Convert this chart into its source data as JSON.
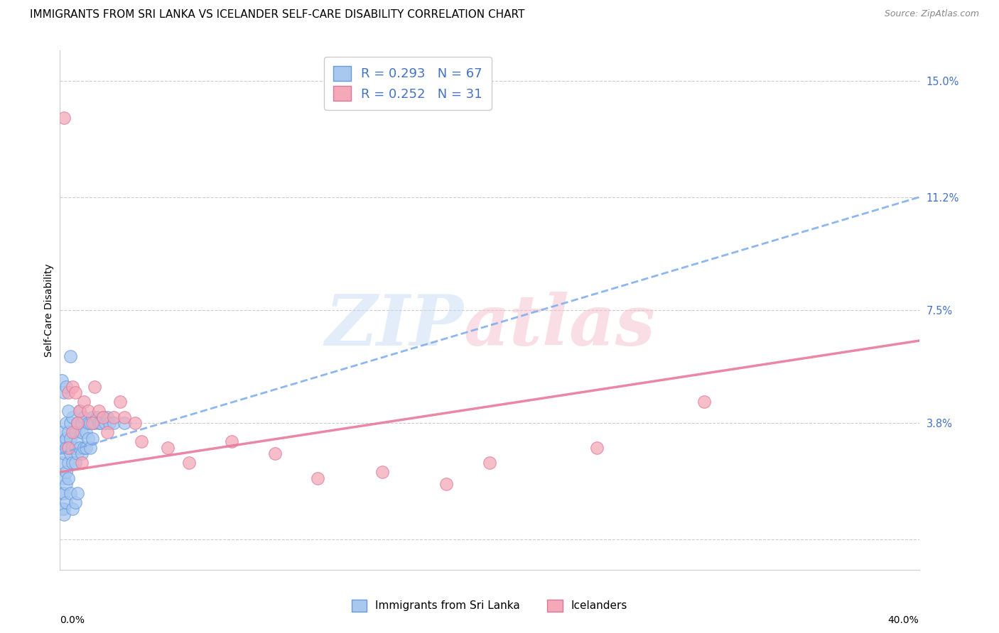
{
  "title": "IMMIGRANTS FROM SRI LANKA VS ICELANDER SELF-CARE DISABILITY CORRELATION CHART",
  "source": "Source: ZipAtlas.com",
  "ylabel": "Self-Care Disability",
  "legend_label_blue": "Immigrants from Sri Lanka",
  "legend_label_pink": "Icelanders",
  "color_blue_fill": "#a8c8f0",
  "color_blue_edge": "#6699dd",
  "color_blue_line": "#7aaaee",
  "color_pink_fill": "#f4a8b8",
  "color_pink_edge": "#dd7799",
  "color_pink_line": "#e87a9a",
  "r_blue": 0.293,
  "n_blue": 67,
  "r_pink": 0.252,
  "n_pink": 31,
  "xlim": [
    0.0,
    0.4
  ],
  "ylim": [
    -0.01,
    0.16
  ],
  "ytick_vals": [
    0.0,
    0.038,
    0.075,
    0.112,
    0.15
  ],
  "ytick_labels": [
    "",
    "3.8%",
    "7.5%",
    "11.2%",
    "15.0%"
  ],
  "blue_line_x": [
    0.0,
    0.4
  ],
  "blue_line_y": [
    0.028,
    0.112
  ],
  "pink_line_x": [
    0.0,
    0.4
  ],
  "pink_line_y": [
    0.022,
    0.065
  ],
  "blue_points_x": [
    0.001,
    0.001,
    0.001,
    0.001,
    0.002,
    0.002,
    0.002,
    0.002,
    0.003,
    0.003,
    0.003,
    0.003,
    0.004,
    0.004,
    0.004,
    0.005,
    0.005,
    0.005,
    0.006,
    0.006,
    0.006,
    0.007,
    0.007,
    0.007,
    0.008,
    0.008,
    0.008,
    0.009,
    0.009,
    0.01,
    0.01,
    0.01,
    0.011,
    0.011,
    0.012,
    0.012,
    0.013,
    0.013,
    0.014,
    0.014,
    0.015,
    0.015,
    0.016,
    0.017,
    0.018,
    0.019,
    0.02,
    0.021,
    0.022,
    0.023,
    0.001,
    0.002,
    0.002,
    0.003,
    0.003,
    0.004,
    0.005,
    0.006,
    0.007,
    0.008,
    0.001,
    0.002,
    0.003,
    0.004,
    0.005,
    0.025,
    0.03
  ],
  "blue_points_y": [
    0.03,
    0.035,
    0.025,
    0.015,
    0.032,
    0.028,
    0.02,
    0.01,
    0.033,
    0.03,
    0.038,
    0.022,
    0.03,
    0.035,
    0.025,
    0.038,
    0.028,
    0.033,
    0.04,
    0.03,
    0.025,
    0.035,
    0.03,
    0.025,
    0.038,
    0.032,
    0.028,
    0.042,
    0.03,
    0.038,
    0.035,
    0.028,
    0.04,
    0.03,
    0.035,
    0.03,
    0.038,
    0.033,
    0.038,
    0.03,
    0.04,
    0.033,
    0.038,
    0.04,
    0.038,
    0.038,
    0.04,
    0.038,
    0.04,
    0.038,
    0.01,
    0.015,
    0.008,
    0.012,
    0.018,
    0.02,
    0.015,
    0.01,
    0.012,
    0.015,
    0.052,
    0.048,
    0.05,
    0.042,
    0.06,
    0.038,
    0.038
  ],
  "pink_points_x": [
    0.004,
    0.006,
    0.007,
    0.009,
    0.011,
    0.013,
    0.015,
    0.016,
    0.018,
    0.02,
    0.022,
    0.025,
    0.028,
    0.03,
    0.035,
    0.038,
    0.05,
    0.06,
    0.08,
    0.1,
    0.12,
    0.15,
    0.18,
    0.2,
    0.25,
    0.3,
    0.004,
    0.006,
    0.008,
    0.01,
    0.002
  ],
  "pink_points_y": [
    0.048,
    0.05,
    0.048,
    0.042,
    0.045,
    0.042,
    0.038,
    0.05,
    0.042,
    0.04,
    0.035,
    0.04,
    0.045,
    0.04,
    0.038,
    0.032,
    0.03,
    0.025,
    0.032,
    0.028,
    0.02,
    0.022,
    0.018,
    0.025,
    0.03,
    0.045,
    0.03,
    0.035,
    0.038,
    0.025,
    0.138
  ]
}
